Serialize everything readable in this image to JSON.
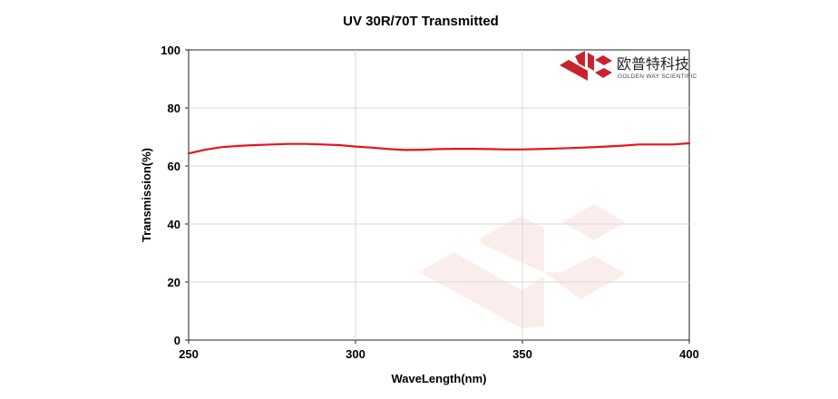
{
  "chart_data": {
    "type": "line",
    "title": "UV 30R/70T Transmitted",
    "xlabel": "WaveLength(nm)",
    "ylabel": "Transmission(%)",
    "xlim": [
      250,
      400
    ],
    "ylim": [
      0,
      100
    ],
    "xticks": [
      250,
      300,
      350,
      400
    ],
    "yticks": [
      0,
      20,
      40,
      60,
      80,
      100
    ],
    "grid": true,
    "legend": "none",
    "series": [
      {
        "color": "#e8141c",
        "x": [
          250,
          255,
          260,
          265,
          270,
          275,
          280,
          285,
          290,
          295,
          300,
          305,
          310,
          315,
          320,
          325,
          330,
          335,
          340,
          345,
          350,
          355,
          360,
          365,
          370,
          375,
          380,
          385,
          390,
          395,
          400
        ],
        "y": [
          64.3,
          65.6,
          66.5,
          66.9,
          67.2,
          67.4,
          67.6,
          67.6,
          67.4,
          67.2,
          66.7,
          66.3,
          65.8,
          65.5,
          65.6,
          65.8,
          65.9,
          65.9,
          65.8,
          65.7,
          65.7,
          65.8,
          66.0,
          66.2,
          66.4,
          66.7,
          67.0,
          67.4,
          67.4,
          67.4,
          67.8
        ]
      }
    ]
  },
  "logo": {
    "company_cn": "欧普特科技",
    "company_en": "GOLDEN WAY SCIENTIFIC",
    "color": "#c8232c"
  }
}
